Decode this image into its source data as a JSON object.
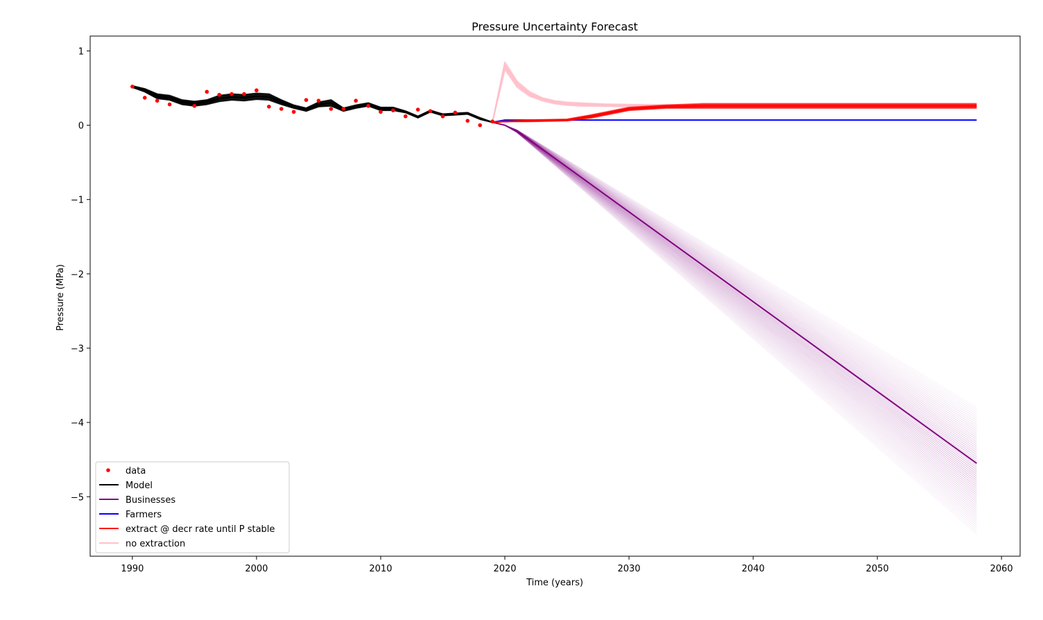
{
  "chart_data": {
    "type": "line",
    "title": "Pressure Uncertainty Forecast",
    "xlabel": "Time (years)",
    "ylabel": "Pressure (MPa)",
    "xlim": [
      1986.6,
      2061.5
    ],
    "ylim": [
      -5.8,
      1.2
    ],
    "xticks": [
      1990,
      2000,
      2010,
      2020,
      2030,
      2040,
      2050,
      2060
    ],
    "xtick_labels": [
      "1990",
      "2000",
      "2010",
      "2020",
      "2030",
      "2040",
      "2050",
      "2060"
    ],
    "yticks": [
      1,
      0,
      -1,
      -2,
      -3,
      -4,
      -5
    ],
    "ytick_labels": [
      "1",
      "0",
      "−1",
      "−2",
      "−3",
      "−4",
      "−5"
    ],
    "grid": false,
    "legend_position": "lower-left",
    "series": [
      {
        "name": "data",
        "style": "points",
        "color": "#ff0000",
        "x": [
          1990,
          1991,
          1992,
          1993,
          1995,
          1996,
          1997,
          1998,
          1999,
          2000,
          2001,
          2002,
          2003,
          2004,
          2005,
          2006,
          2007,
          2008,
          2009,
          2010,
          2011,
          2012,
          2013,
          2014,
          2015,
          2016,
          2017,
          2018,
          2019
        ],
        "y": [
          0.52,
          0.37,
          0.33,
          0.28,
          0.26,
          0.45,
          0.41,
          0.42,
          0.42,
          0.47,
          0.25,
          0.22,
          0.18,
          0.34,
          0.33,
          0.22,
          0.22,
          0.33,
          0.26,
          0.18,
          0.2,
          0.12,
          0.21,
          0.19,
          0.12,
          0.17,
          0.06,
          0.0,
          0.05
        ]
      },
      {
        "name": "Model",
        "style": "line",
        "color": "#000000",
        "x": [
          1990,
          1991,
          1992,
          1993,
          1994,
          1995,
          1996,
          1997,
          1998,
          1999,
          2000,
          2001,
          2002,
          2003,
          2004,
          2005,
          2006,
          2007,
          2008,
          2009,
          2010,
          2011,
          2012,
          2013,
          2014,
          2015,
          2016,
          2017,
          2018,
          2019
        ],
        "y": [
          0.52,
          0.47,
          0.39,
          0.37,
          0.31,
          0.29,
          0.31,
          0.36,
          0.38,
          0.37,
          0.39,
          0.38,
          0.31,
          0.25,
          0.21,
          0.28,
          0.3,
          0.21,
          0.25,
          0.28,
          0.22,
          0.22,
          0.18,
          0.11,
          0.19,
          0.14,
          0.15,
          0.16,
          0.09,
          0.04
        ],
        "band_halfwidth": [
          0.01,
          0.02,
          0.03,
          0.03,
          0.03,
          0.03,
          0.03,
          0.04,
          0.04,
          0.04,
          0.04,
          0.04,
          0.03,
          0.02,
          0.02,
          0.03,
          0.04,
          0.02,
          0.02,
          0.02,
          0.02,
          0.02,
          0.01,
          0.01,
          0.01,
          0.01,
          0.01,
          0.01,
          0.01,
          0.0
        ]
      },
      {
        "name": "Businesses",
        "style": "line",
        "color": "#800080",
        "x": [
          2019,
          2020,
          2021,
          2022,
          2058
        ],
        "y": [
          0.04,
          0.0,
          -0.08,
          -0.2,
          -4.55
        ],
        "spread_at_end": [
          -5.5,
          -3.8
        ]
      },
      {
        "name": "Farmers",
        "style": "line",
        "color": "#0000ff",
        "x": [
          2019,
          2020,
          2058
        ],
        "y": [
          0.04,
          0.07,
          0.07
        ]
      },
      {
        "name": "extract @ decr rate until P stable",
        "style": "line",
        "color": "#ff0000",
        "x": [
          2019,
          2020,
          2022,
          2025,
          2027,
          2030,
          2033,
          2036,
          2058
        ],
        "y": [
          0.04,
          0.05,
          0.06,
          0.07,
          0.12,
          0.22,
          0.25,
          0.26,
          0.26
        ],
        "band_halfwidth": [
          0.0,
          0.0,
          0.01,
          0.01,
          0.02,
          0.02,
          0.02,
          0.03,
          0.03
        ]
      },
      {
        "name": "no extraction",
        "style": "line",
        "color": "#ffc0cb",
        "x": [
          2019,
          2020,
          2021,
          2022,
          2023,
          2024,
          2025,
          2026,
          2028,
          2030,
          2033,
          2058
        ],
        "y": [
          0.04,
          0.8,
          0.55,
          0.42,
          0.35,
          0.31,
          0.29,
          0.28,
          0.27,
          0.265,
          0.26,
          0.26
        ],
        "band_halfwidth": [
          0.0,
          0.05,
          0.04,
          0.03,
          0.02,
          0.02,
          0.02,
          0.02,
          0.015,
          0.015,
          0.015,
          0.015
        ]
      }
    ]
  }
}
